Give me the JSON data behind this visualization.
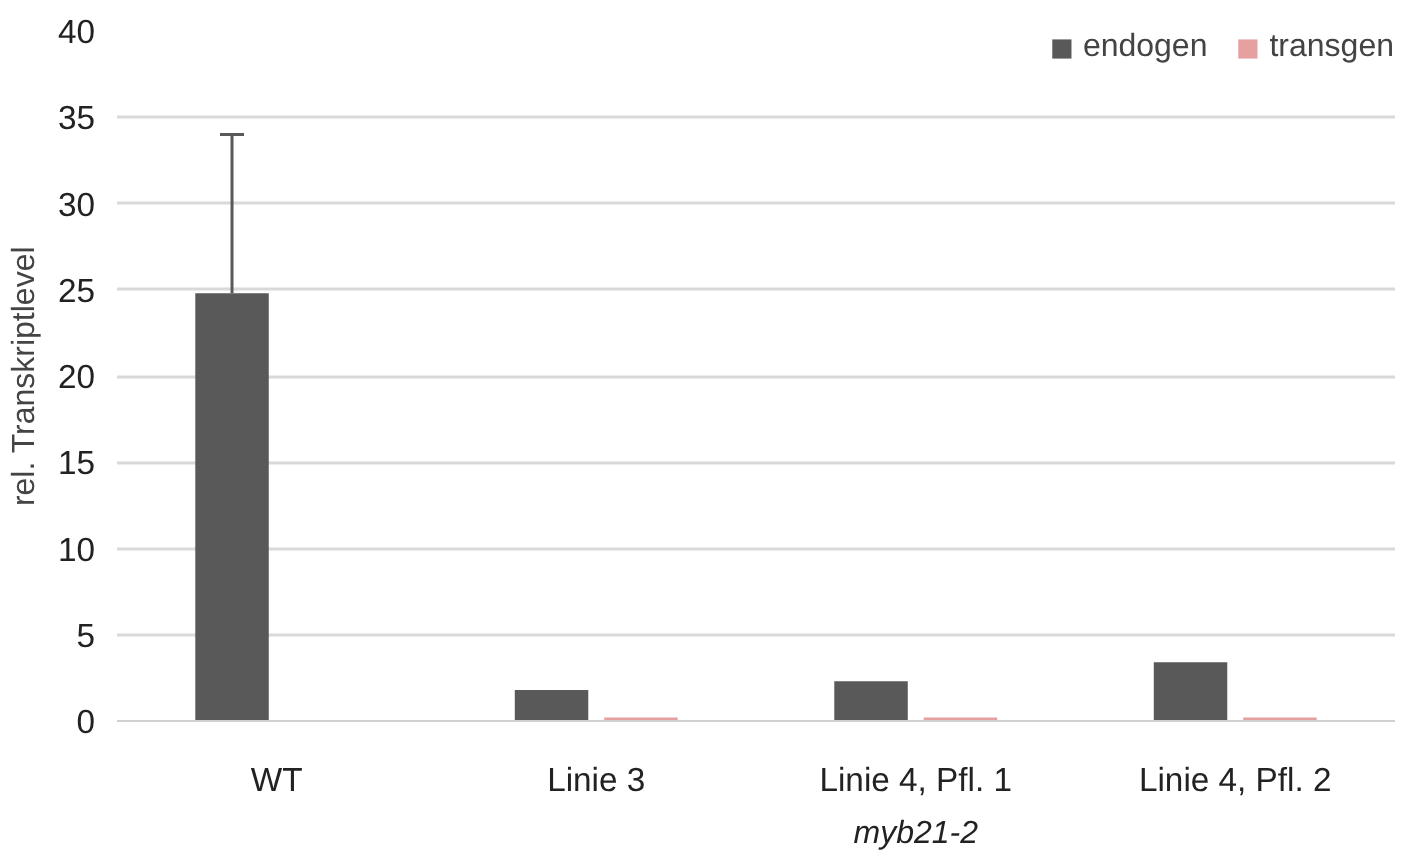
{
  "chart_data": {
    "type": "bar",
    "ylabel": "rel. Transkriptlevel",
    "categories": [
      "WT",
      "Linie 3",
      "Linie 4, Pfl. 1",
      "Linie 4, Pfl. 2"
    ],
    "series": [
      {
        "name": "endogen",
        "color": "#595959",
        "values": [
          24.8,
          1.8,
          2.3,
          3.4
        ],
        "errors": [
          [
            24.8,
            34
          ],
          null,
          null,
          null
        ]
      },
      {
        "name": "transgen",
        "color": "#e6a0a0",
        "values": [
          null,
          0.2,
          0.2,
          0.2
        ]
      }
    ],
    "ylim": [
      0,
      40
    ],
    "yticks": [
      0,
      5,
      10,
      15,
      20,
      25,
      30,
      35,
      40
    ],
    "grid": "y",
    "legend": "top right",
    "annotations": [
      "myb21-2"
    ]
  }
}
